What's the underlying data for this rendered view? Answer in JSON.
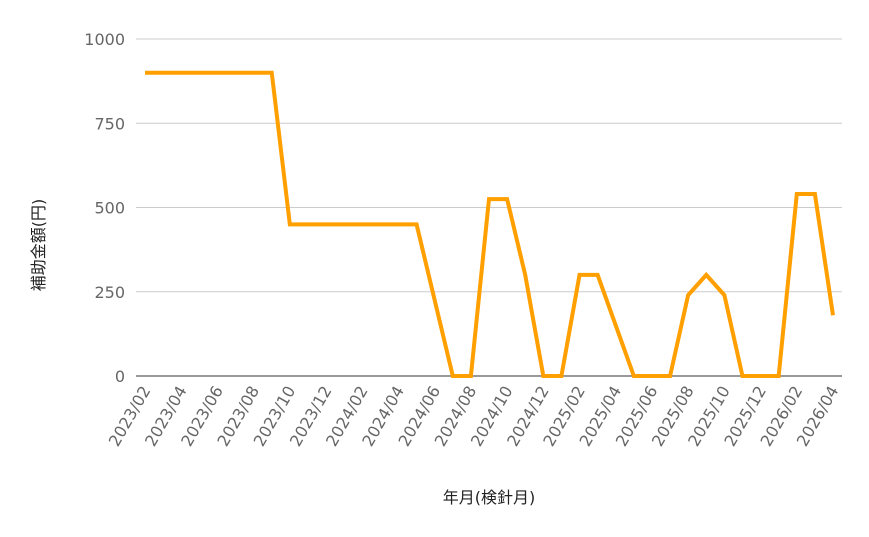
{
  "chart_data": {
    "type": "line",
    "xlabel": "年月(検針月)",
    "ylabel": "補助金額(円)",
    "ylim": [
      0,
      1000
    ],
    "yticks": [
      0,
      250,
      500,
      750,
      1000
    ],
    "grid": true,
    "color": "#ff9f00",
    "x": [
      "2023/02",
      "2023/03",
      "2023/04",
      "2023/05",
      "2023/06",
      "2023/07",
      "2023/08",
      "2023/09",
      "2023/10",
      "2023/11",
      "2023/12",
      "2024/01",
      "2024/02",
      "2024/03",
      "2024/04",
      "2024/05",
      "2024/06",
      "2024/07",
      "2024/08",
      "2024/09",
      "2024/10",
      "2024/11",
      "2024/12",
      "2025/01",
      "2025/02",
      "2025/03",
      "2025/04",
      "2025/05",
      "2025/06",
      "2025/07",
      "2025/08",
      "2025/09",
      "2025/10",
      "2025/11",
      "2025/12",
      "2026/01",
      "2026/02",
      "2026/03",
      "2026/04"
    ],
    "xtick_labels": [
      "2023/02",
      "2023/04",
      "2023/06",
      "2023/08",
      "2023/10",
      "2023/12",
      "2024/02",
      "2024/04",
      "2024/06",
      "2024/08",
      "2024/10",
      "2024/12",
      "2025/02",
      "2025/04",
      "2025/06",
      "2025/08",
      "2025/10",
      "2025/12",
      "2026/02",
      "2026/04"
    ],
    "values": [
      900,
      900,
      900,
      900,
      900,
      900,
      900,
      900,
      450,
      450,
      450,
      450,
      450,
      450,
      450,
      450,
      225,
      0,
      0,
      525,
      525,
      300,
      0,
      0,
      300,
      300,
      150,
      0,
      0,
      0,
      240,
      300,
      240,
      0,
      0,
      0,
      540,
      540,
      180
    ]
  }
}
